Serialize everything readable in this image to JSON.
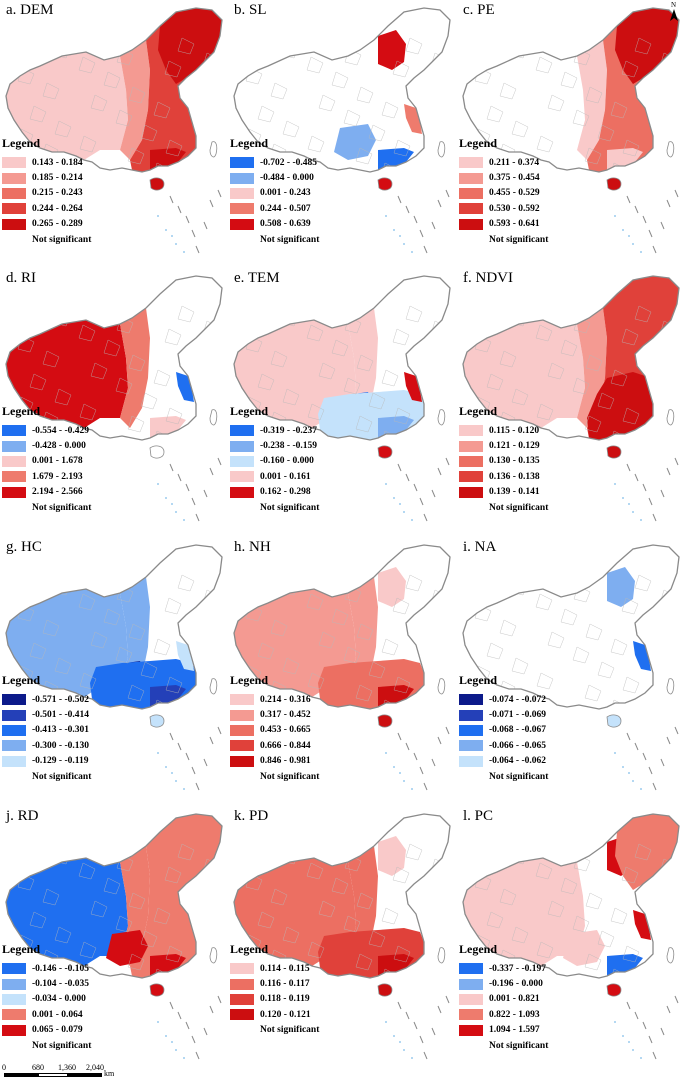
{
  "north_arrow": {
    "label": "N",
    "icon": "north-arrow-icon"
  },
  "legend_heading": "Legend",
  "not_significant": "Not significant",
  "panels": [
    {
      "title": "a. DEM",
      "hot": "east",
      "classes": [
        {
          "label": "0.143 - 0.184",
          "color": "#f9c9c9"
        },
        {
          "label": "0.185 - 0.214",
          "color": "#f49a92"
        },
        {
          "label": "0.215 - 0.243",
          "color": "#ec6f62"
        },
        {
          "label": "0.244 - 0.264",
          "color": "#e0413a"
        },
        {
          "label": "0.265 - 0.289",
          "color": "#cc0e10"
        }
      ]
    },
    {
      "title": "b. SL",
      "hot": "north",
      "classes": [
        {
          "label": "-0.702 - -0.485",
          "color": "#1f6ff0"
        },
        {
          "label": "-0.484 - 0.000",
          "color": "#7eaef0"
        },
        {
          "label": "0.001 - 0.243",
          "color": "#f9c9c9"
        },
        {
          "label": "0.244 - 0.507",
          "color": "#ee7b6d"
        },
        {
          "label": "0.508 - 0.639",
          "color": "#d40c12"
        }
      ]
    },
    {
      "title": "c. PE",
      "hot": "northeast",
      "classes": [
        {
          "label": "0.211 - 0.374",
          "color": "#f9c9c9"
        },
        {
          "label": "0.375 - 0.454",
          "color": "#f49a92"
        },
        {
          "label": "0.455 - 0.529",
          "color": "#ec6f62"
        },
        {
          "label": "0.530 - 0.592",
          "color": "#e0413a"
        },
        {
          "label": "0.593 - 0.641",
          "color": "#cc0e10"
        }
      ]
    },
    {
      "title": "d. RI",
      "hot": "west",
      "classes": [
        {
          "label": "-0.554 - -0.429",
          "color": "#1f6ff0"
        },
        {
          "label": "-0.428 - 0.000",
          "color": "#7eaef0"
        },
        {
          "label": "0.001 - 1.678",
          "color": "#f9c9c9"
        },
        {
          "label": "1.679 - 2.193",
          "color": "#ee7b6d"
        },
        {
          "label": "2.194 - 2.566",
          "color": "#d40c12"
        }
      ]
    },
    {
      "title": "e. TEM",
      "hot": "south-blue",
      "classes": [
        {
          "label": "-0.319 - -0.237",
          "color": "#1f6ff0"
        },
        {
          "label": "-0.238 - -0.159",
          "color": "#7eaef0"
        },
        {
          "label": "-0.160 - 0.000",
          "color": "#c4e2fb"
        },
        {
          "label": "0.001 - 0.161",
          "color": "#f9c9c9"
        },
        {
          "label": "0.162 - 0.298",
          "color": "#d40c12"
        }
      ]
    },
    {
      "title": "f. NDVI",
      "hot": "southeast",
      "classes": [
        {
          "label": "0.115 - 0.120",
          "color": "#f9c9c9"
        },
        {
          "label": "0.121 - 0.129",
          "color": "#f49a92"
        },
        {
          "label": "0.130 - 0.135",
          "color": "#ec6f62"
        },
        {
          "label": "0.136 - 0.138",
          "color": "#e0413a"
        },
        {
          "label": "0.139 - 0.141",
          "color": "#cc0e10"
        }
      ]
    },
    {
      "title": "g. HC",
      "hot": "south-blue",
      "classes": [
        {
          "label": "-0.571 - -0.502",
          "color": "#0c1a8a"
        },
        {
          "label": "-0.501 - -0.414",
          "color": "#2440b8"
        },
        {
          "label": "-0.413 - -0.301",
          "color": "#1f6ff0"
        },
        {
          "label": "-0.300 - -0.130",
          "color": "#7eaef0"
        },
        {
          "label": "-0.129 - -0.119",
          "color": "#c4e2fb"
        }
      ]
    },
    {
      "title": "h. NH",
      "hot": "south",
      "classes": [
        {
          "label": "0.214 - 0.316",
          "color": "#f9c9c9"
        },
        {
          "label": "0.317 - 0.452",
          "color": "#f49a92"
        },
        {
          "label": "0.453 - 0.665",
          "color": "#ec6f62"
        },
        {
          "label": "0.666 - 0.844",
          "color": "#e0413a"
        },
        {
          "label": "0.846 - 0.981",
          "color": "#cc0e10"
        }
      ]
    },
    {
      "title": "i. NA",
      "hot": "sparse-blue",
      "classes": [
        {
          "label": "-0.074 - -0.072",
          "color": "#0c1a8a"
        },
        {
          "label": "-0.071 - -0.069",
          "color": "#2440b8"
        },
        {
          "label": "-0.068 - -0.067",
          "color": "#1f6ff0"
        },
        {
          "label": "-0.066 - -0.065",
          "color": "#7eaef0"
        },
        {
          "label": "-0.064 - -0.062",
          "color": "#c4e2fb"
        }
      ]
    },
    {
      "title": "j. RD",
      "hot": "west-blue",
      "classes": [
        {
          "label": "-0.146 - -0.105",
          "color": "#1f6ff0"
        },
        {
          "label": "-0.104 - -0.035",
          "color": "#7eaef0"
        },
        {
          "label": "-0.034 - 0.000",
          "color": "#c4e2fb"
        },
        {
          "label": "0.001 - 0.064",
          "color": "#ee7b6d"
        },
        {
          "label": "0.065 - 0.079",
          "color": "#d40c12"
        }
      ]
    },
    {
      "title": "k. PD",
      "hot": "south",
      "classes": [
        {
          "label": "0.114 - 0.115",
          "color": "#f9c9c9"
        },
        {
          "label": "0.116 - 0.117",
          "color": "#ec6f62"
        },
        {
          "label": "0.118 - 0.119",
          "color": "#e0413a"
        },
        {
          "label": "0.120 - 0.121",
          "color": "#cc0e10"
        }
      ]
    },
    {
      "title": "l. PC",
      "hot": "mixed",
      "classes": [
        {
          "label": "-0.337 - -0.197",
          "color": "#1f6ff0"
        },
        {
          "label": "-0.196 - 0.000",
          "color": "#7eaef0"
        },
        {
          "label": "0.001 - 0.821",
          "color": "#f9c9c9"
        },
        {
          "label": "0.822 - 1.093",
          "color": "#ee7b6d"
        },
        {
          "label": "1.094 - 1.597",
          "color": "#d40c12"
        }
      ]
    }
  ],
  "scale_bar": {
    "ticks": [
      "0",
      "680",
      "1,360",
      "2,040"
    ],
    "unit": "km"
  }
}
